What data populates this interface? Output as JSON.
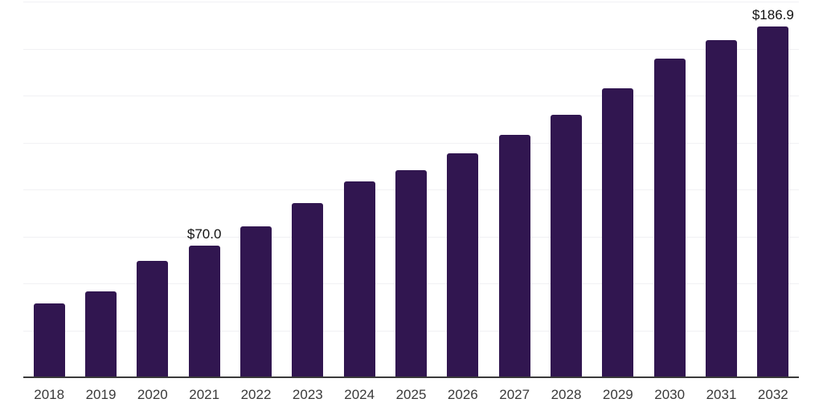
{
  "chart_data": {
    "type": "bar",
    "title": "",
    "xlabel": "",
    "ylabel": "",
    "categories": [
      "2018",
      "2019",
      "2020",
      "2021",
      "2022",
      "2023",
      "2024",
      "2025",
      "2026",
      "2027",
      "2028",
      "2029",
      "2030",
      "2031",
      "2032"
    ],
    "values": [
      39.5,
      45.6,
      61.8,
      70.0,
      80.2,
      92.8,
      104.1,
      110.2,
      119.3,
      129.0,
      139.8,
      153.9,
      169.5,
      179.7,
      186.9
    ],
    "ylim": [
      0,
      200
    ],
    "ytick_step": 25,
    "grid": "horizontal-only",
    "yaxis_tick_labels_visible": false,
    "legend": "none",
    "annotations": [
      {
        "category": "2021",
        "text": "$70.0"
      },
      {
        "category": "2032",
        "text": "$186.9"
      }
    ]
  },
  "style": {
    "bar_color": "#311650",
    "gridline_color": "#F1F1F4",
    "axis_line_color": "#3A3A3A",
    "tick_label_color": "#3A3A3A",
    "annotation_color": "#121212",
    "background_color": "#FFFFFF"
  }
}
